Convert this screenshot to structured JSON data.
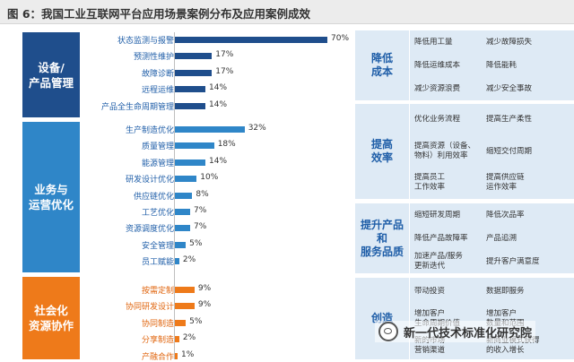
{
  "title": "图 6：我国工业互联网平台应用场景案例分布及应用案例成效",
  "colors": {
    "blue_dark": "#1f4e8c",
    "blue": "#2f86c8",
    "orange": "#ee7a1a",
    "panel": "#deeaf5"
  },
  "chart_data": {
    "type": "bar",
    "orientation": "horizontal",
    "xlim": [
      0,
      70
    ],
    "groups": [
      {
        "name": "设备/\n产品管理",
        "color": "blue_dark",
        "items": [
          {
            "label": "状态监测与报警",
            "value": 70,
            "value_label": "70%"
          },
          {
            "label": "预测性维护",
            "value": 17,
            "value_label": "17%"
          },
          {
            "label": "故障诊断",
            "value": 17,
            "value_label": "17%"
          },
          {
            "label": "远程运维",
            "value": 14,
            "value_label": "14%"
          },
          {
            "label": "产品全生命周期管理",
            "value": 14,
            "value_label": "14%"
          }
        ]
      },
      {
        "name": "业务与\n运营优化",
        "color": "blue",
        "items": [
          {
            "label": "生产制造优化",
            "value": 32,
            "value_label": "32%"
          },
          {
            "label": "质量管理",
            "value": 18,
            "value_label": "18%"
          },
          {
            "label": "能源管理",
            "value": 14,
            "value_label": "14%"
          },
          {
            "label": "研发设计优化",
            "value": 10,
            "value_label": "10%"
          },
          {
            "label": "供应链优化",
            "value": 8,
            "value_label": "8%"
          },
          {
            "label": "工艺优化",
            "value": 7,
            "value_label": "7%"
          },
          {
            "label": "资源调度优化",
            "value": 7,
            "value_label": "7%"
          },
          {
            "label": "安全管理",
            "value": 5,
            "value_label": "5%"
          },
          {
            "label": "员工赋能",
            "value": 2,
            "value_label": "2%"
          }
        ]
      },
      {
        "name": "社会化\n资源协作",
        "color": "orange",
        "items": [
          {
            "label": "按需定制",
            "value": 9,
            "value_label": "9%"
          },
          {
            "label": "协同研发设计",
            "value": 9,
            "value_label": "9%"
          },
          {
            "label": "协同制造",
            "value": 5,
            "value_label": "5%"
          },
          {
            "label": "分享制造",
            "value": 2,
            "value_label": "2%"
          },
          {
            "label": "产融合作",
            "value": 1,
            "value_label": "1%"
          }
        ]
      }
    ]
  },
  "benefits": [
    {
      "category": "降低\n成本",
      "items": [
        "降低用工量",
        "减少故障损失",
        "降低运维成本",
        "降低能耗",
        "减少资源浪费",
        "减少安全事故"
      ]
    },
    {
      "category": "提高\n效率",
      "items": [
        "优化业务流程",
        "提高生产柔性",
        "提高资源（设备、\n物料）利用效率",
        "缩短交付周期",
        "提高员工\n工作效率",
        "提高供应链\n运作效率"
      ]
    },
    {
      "category": "提升产品\n和\n服务品质",
      "items": [
        "缩短研发周期",
        "降低次品率",
        "降低产品故障率",
        "产品追溯",
        "加速产品/服务\n更新迭代",
        "提升客户满意度"
      ]
    },
    {
      "category": "创造",
      "items": [
        "带动投资",
        "数据即服务",
        "增加客户\n生命周期价值",
        "增加客户\n数量和范围",
        "新的市场\n营销渠道",
        "新商业模式获得\n的收入增长"
      ]
    }
  ],
  "watermark": {
    "text": "新一代技术标准化研究院",
    "icon": "wechat-icon"
  }
}
